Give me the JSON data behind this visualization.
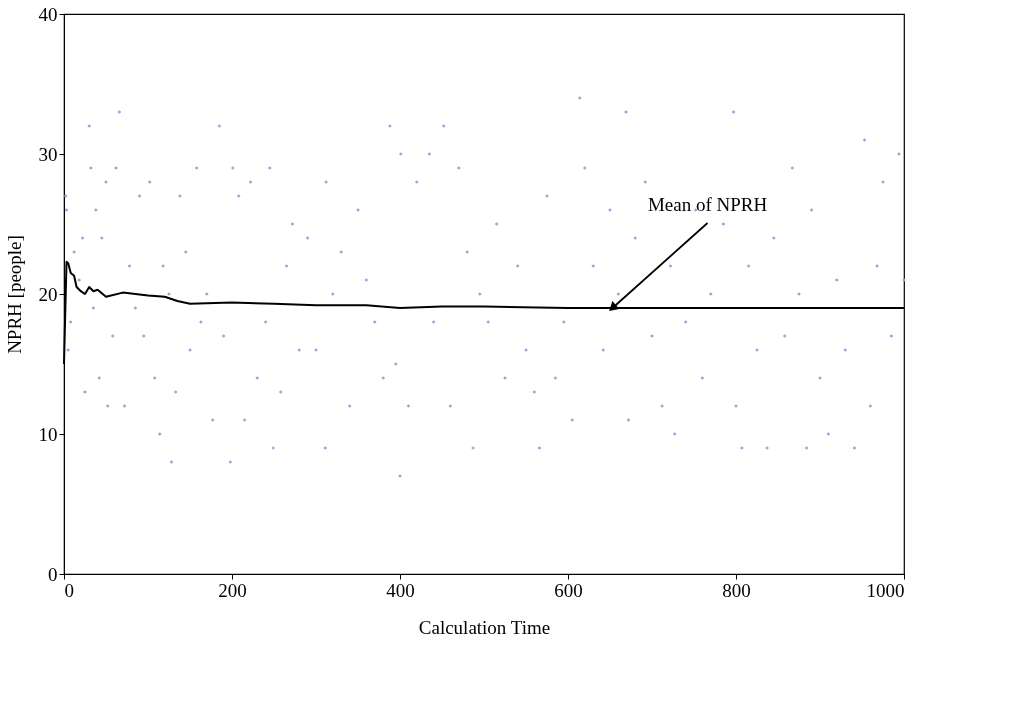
{
  "chart_data": {
    "type": "scatter",
    "xlabel": "Calculation Time",
    "ylabel": "NPRH [people]",
    "xlim": [
      0,
      1000
    ],
    "ylim": [
      0,
      40
    ],
    "xticks": [
      0,
      200,
      400,
      600,
      800,
      1000
    ],
    "yticks": [
      0,
      10,
      20,
      30,
      40
    ],
    "grid": false,
    "line_style": "solid",
    "series": [
      {
        "marker": "diamond",
        "color": "#8eaadc",
        "x": [
          2,
          3,
          5,
          8,
          12,
          18,
          22,
          25,
          30,
          32,
          35,
          38,
          42,
          45,
          50,
          52,
          58,
          62,
          66,
          72,
          78,
          85,
          90,
          95,
          102,
          108,
          114,
          118,
          125,
          128,
          133,
          138,
          145,
          150,
          158,
          163,
          170,
          177,
          185,
          190,
          198,
          201,
          208,
          215,
          222,
          230,
          240,
          245,
          249,
          258,
          265,
          272,
          280,
          290,
          300,
          311,
          312,
          320,
          330,
          340,
          350,
          360,
          370,
          380,
          388,
          395,
          400,
          401,
          410,
          420,
          435,
          440,
          452,
          460,
          470,
          480,
          487,
          495,
          505,
          515,
          525,
          540,
          550,
          560,
          566,
          575,
          585,
          595,
          605,
          614,
          620,
          630,
          642,
          650,
          660,
          669,
          672,
          680,
          692,
          700,
          712,
          722,
          727,
          740,
          752,
          760,
          770,
          785,
          797,
          800,
          807,
          815,
          825,
          837,
          845,
          858,
          867,
          875,
          884,
          890,
          900,
          910,
          920,
          930,
          941,
          953,
          960,
          968,
          975,
          985,
          994,
          1000
        ],
        "values": [
          27,
          26,
          16,
          18,
          23,
          21,
          24,
          13,
          32,
          29,
          19,
          26,
          14,
          24,
          28,
          12,
          17,
          29,
          33,
          12,
          22,
          19,
          27,
          17,
          28,
          14,
          10,
          22,
          20,
          8,
          13,
          27,
          23,
          16,
          29,
          18,
          20,
          11,
          32,
          17,
          8,
          29,
          27,
          11,
          28,
          14,
          18,
          29,
          9,
          13,
          22,
          25,
          16,
          24,
          16,
          9,
          28,
          20,
          23,
          12,
          26,
          21,
          18,
          14,
          32,
          15,
          7,
          30,
          12,
          28,
          30,
          18,
          32,
          12,
          29,
          23,
          9,
          20,
          18,
          25,
          14,
          22,
          16,
          13,
          9,
          27,
          14,
          18,
          11,
          34,
          29,
          22,
          16,
          26,
          20,
          33,
          11,
          24,
          28,
          17,
          12,
          22,
          10,
          18,
          26,
          14,
          20,
          25,
          33,
          12,
          9,
          22,
          16,
          9,
          24,
          17,
          29,
          20,
          9,
          26,
          14,
          10,
          21,
          16,
          9,
          31,
          12,
          22,
          28,
          17,
          30,
          21
        ]
      },
      {
        "type": "line",
        "color": "#000000",
        "x": [
          0,
          3,
          5,
          8,
          12,
          15,
          20,
          25,
          30,
          35,
          40,
          50,
          70,
          100,
          120,
          135,
          150,
          200,
          250,
          300,
          360,
          400,
          450,
          500,
          600,
          700,
          800,
          900,
          1000
        ],
        "values": [
          15,
          22.3,
          22.2,
          21.5,
          21.3,
          20.5,
          20.2,
          20.0,
          20.5,
          20.2,
          20.3,
          19.8,
          20.1,
          19.9,
          19.8,
          19.5,
          19.3,
          19.4,
          19.3,
          19.2,
          19.2,
          19.0,
          19.1,
          19.1,
          19.0,
          19.0,
          19.0,
          19.0,
          19.0
        ]
      }
    ],
    "annotations": [
      {
        "text": "Mean of NPRH",
        "x": 653,
        "y": 19
      }
    ]
  }
}
